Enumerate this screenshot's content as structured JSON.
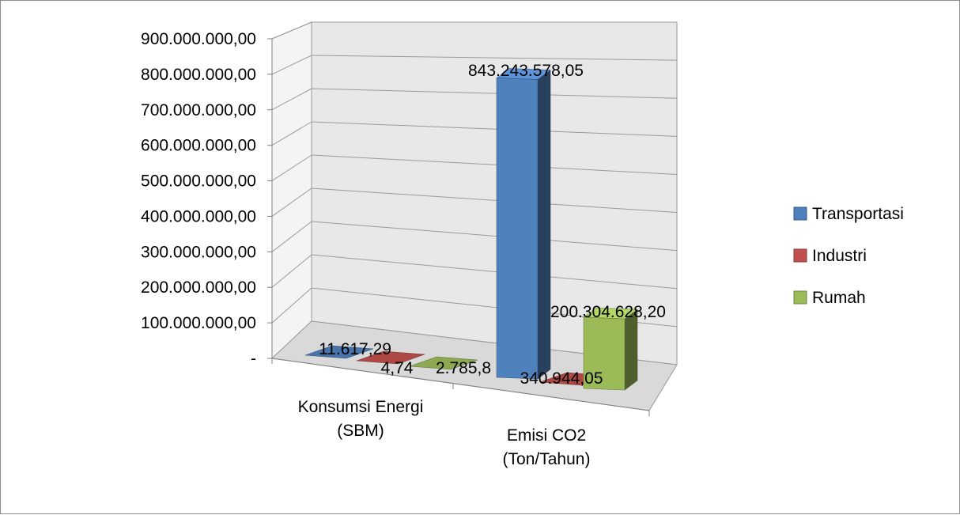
{
  "chart_data": {
    "type": "bar",
    "categories": [
      "Konsumsi Energi (SBM)",
      "Emisi CO2 (Ton/Tahun)"
    ],
    "category_lines": [
      [
        "Konsumsi Energi",
        "(SBM)"
      ],
      [
        "Emisi CO2",
        "(Ton/Tahun)"
      ]
    ],
    "series": [
      {
        "name": "Transportasi",
        "values": [
          11617.29,
          843243578.05
        ],
        "labels": [
          "11.617,29",
          "843.243.578,05"
        ],
        "color": "#4f81bd"
      },
      {
        "name": "Industri",
        "values": [
          4.74,
          340944.05
        ],
        "labels": [
          "4,74",
          "340.944,05"
        ],
        "color": "#c0504d"
      },
      {
        "name": "Rumah",
        "values": [
          2785.8,
          200304628.2
        ],
        "labels": [
          "2.785,8",
          "200.304.628,20"
        ],
        "color": "#9bbb59"
      }
    ],
    "yticks": [
      "-",
      "100.000.000,00",
      "200.000.000,00",
      "300.000.000,00",
      "400.000.000,00",
      "500.000.000,00",
      "600.000.000,00",
      "700.000.000,00",
      "800.000.000,00",
      "900.000.000,00"
    ],
    "ylim": [
      0,
      900000000
    ],
    "legend_position": "right",
    "grid": true,
    "three_d": true
  }
}
